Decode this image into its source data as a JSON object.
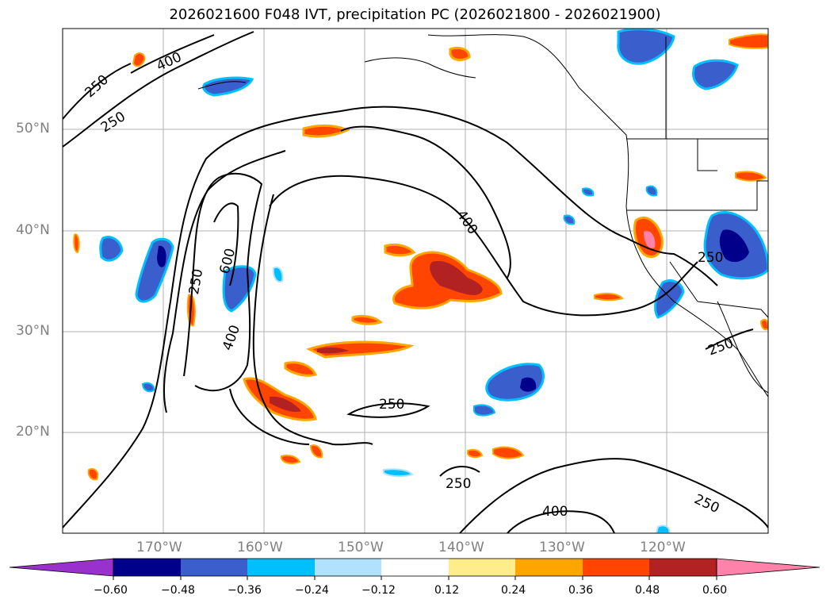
{
  "title": "2026021600 F048 IVT, precipitation PC (2026021800 - 2026021900)",
  "axes": {
    "lat_labels": [
      "50°N",
      "40°N",
      "30°N",
      "20°N"
    ],
    "lon_labels": [
      "170°W",
      "160°W",
      "150°W",
      "140°W",
      "130°W",
      "120°W"
    ]
  },
  "contour_labels": [
    "250",
    "400",
    "250",
    "600",
    "250",
    "400",
    "400",
    "250",
    "250",
    "250",
    "250",
    "400",
    "250"
  ],
  "colorbar": {
    "ticks": [
      "−0.60",
      "−0.48",
      "−0.36",
      "−0.24",
      "−0.12",
      "0.12",
      "0.24",
      "0.36",
      "0.48",
      "0.60"
    ],
    "colors": [
      "#9932cc",
      "#00008b",
      "#3a5fcd",
      "#00bfff",
      "#b0e2ff",
      "#ffffff",
      "#ffec8b",
      "#ffa500",
      "#ff4500",
      "#b22222",
      "#ff82ab"
    ]
  },
  "colors": {
    "contour": "#000000",
    "grid": "#b0b0b0",
    "coast": "#000000"
  }
}
